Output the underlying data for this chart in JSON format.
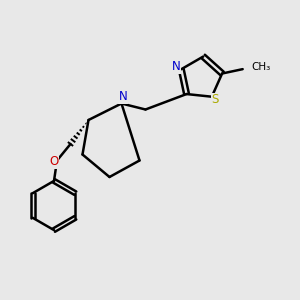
{
  "background_color": "#e8e8e8",
  "bond_color": "#000000",
  "N_color": "#0000cc",
  "S_color": "#aaaa00",
  "O_color": "#cc0000",
  "line_width": 1.8,
  "figsize": [
    3.0,
    3.0
  ],
  "dpi": 100,
  "xlim": [
    0,
    10
  ],
  "ylim": [
    0,
    10
  ]
}
